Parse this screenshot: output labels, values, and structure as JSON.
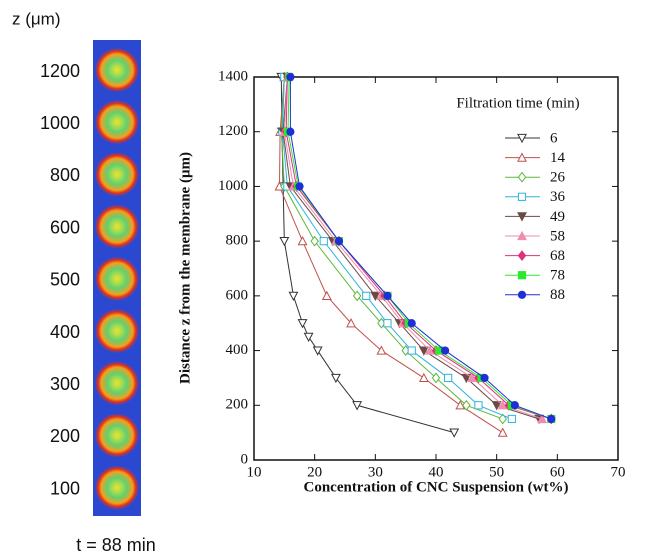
{
  "chart_data": {
    "type": "line",
    "xlabel": "Concentration of CNC Suspension (wt%)",
    "ylabel": "Distance z from the membrane (μm)",
    "legend_title": "Filtration time (min)",
    "xlim": [
      10,
      70
    ],
    "xticks": [
      10,
      20,
      30,
      40,
      50,
      60,
      70
    ],
    "ylim": [
      0,
      1400
    ],
    "yticks": [
      0,
      200,
      400,
      600,
      800,
      1000,
      1200,
      1400
    ],
    "series": [
      {
        "name": "6",
        "color": "#333333",
        "marker": "triangle-down",
        "filled": false,
        "x": [
          14.5,
          14.6,
          14.8,
          15,
          16.5,
          18,
          19,
          20.5,
          23.5,
          27,
          43
        ],
        "values": [
          1400,
          1200,
          1000,
          800,
          600,
          500,
          450,
          400,
          300,
          200,
          100
        ]
      },
      {
        "name": "14",
        "color": "#c0504d",
        "marker": "triangle-up",
        "filled": false,
        "x": [
          15,
          14.3,
          14.2,
          18,
          22,
          26,
          31,
          38,
          44,
          51
        ],
        "values": [
          1400,
          1200,
          1000,
          800,
          600,
          500,
          400,
          300,
          200,
          100
        ]
      },
      {
        "name": "26",
        "color": "#5cb83a",
        "marker": "diamond",
        "filled": false,
        "x": [
          15,
          14.5,
          15,
          20,
          27,
          31,
          35,
          40,
          45,
          51
        ],
        "values": [
          1400,
          1200,
          1000,
          800,
          600,
          500,
          400,
          300,
          200,
          150
        ]
      },
      {
        "name": "36",
        "color": "#2eb3e0",
        "marker": "square",
        "filled": false,
        "x": [
          15,
          14.7,
          15.5,
          21.5,
          28.5,
          32,
          36,
          42,
          47,
          52.5
        ],
        "values": [
          1400,
          1200,
          1000,
          800,
          600,
          500,
          400,
          300,
          200,
          150
        ]
      },
      {
        "name": "49",
        "color": "#6b4a45",
        "marker": "triangle-down",
        "filled": true,
        "x": [
          15.5,
          14.8,
          16,
          23,
          30,
          34,
          38,
          45,
          50,
          57
        ],
        "values": [
          1400,
          1200,
          1000,
          800,
          600,
          500,
          400,
          300,
          200,
          150
        ]
      },
      {
        "name": "58",
        "color": "#f08cb0",
        "marker": "triangle-up",
        "filled": true,
        "x": [
          15.5,
          15,
          16.5,
          23.5,
          31,
          34.5,
          39,
          46,
          51,
          57.5
        ],
        "values": [
          1400,
          1200,
          1000,
          800,
          600,
          500,
          400,
          300,
          200,
          150
        ]
      },
      {
        "name": "68",
        "color": "#e0307a",
        "marker": "diamond",
        "filled": true,
        "x": [
          15.5,
          15.3,
          17,
          24,
          31.5,
          35,
          40,
          47,
          52,
          59
        ],
        "values": [
          1400,
          1200,
          1000,
          800,
          600,
          500,
          400,
          300,
          200,
          150
        ]
      },
      {
        "name": "78",
        "color": "#2ee82e",
        "marker": "square",
        "filled": true,
        "x": [
          15.8,
          15.6,
          17.3,
          24,
          32,
          35.5,
          40.5,
          47.5,
          52.5,
          59
        ],
        "values": [
          1400,
          1200,
          1000,
          800,
          600,
          500,
          400,
          300,
          200,
          150
        ]
      },
      {
        "name": "88",
        "color": "#1f2ed6",
        "marker": "circle",
        "filled": true,
        "x": [
          16,
          16,
          17.5,
          24,
          32,
          36,
          41.5,
          48,
          53,
          59
        ],
        "values": [
          1400,
          1200,
          1000,
          800,
          600,
          500,
          400,
          300,
          200,
          150
        ]
      }
    ]
  },
  "image_panel": {
    "axis_label": "z (μm)",
    "labels": [
      "1200",
      "1000",
      "800",
      "600",
      "500",
      "400",
      "300",
      "200",
      "100"
    ],
    "caption": "t = 88 min"
  }
}
